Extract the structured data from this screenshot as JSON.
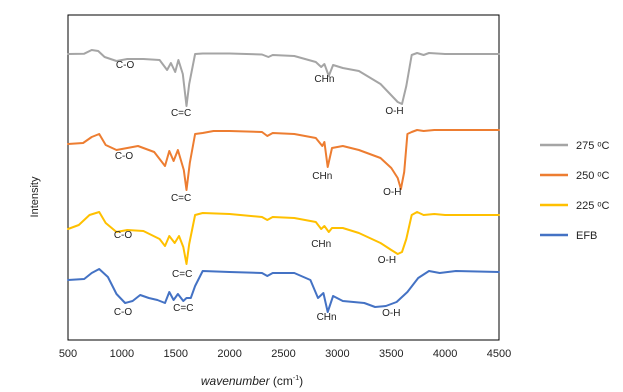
{
  "chart_data": {
    "type": "line",
    "xlabel_main": "wavenumber",
    "xlabel_unit_pre": "(cm",
    "xlabel_unit_exp": "-1",
    "xlabel_unit_post": ")",
    "ylabel": "Intensity",
    "xlim": [
      500,
      4500
    ],
    "xticks": [
      "500",
      "1000",
      "1500",
      "2000",
      "2500",
      "3000",
      "3500",
      "4000",
      "4500"
    ],
    "grid": false,
    "legend_position": "right",
    "series": [
      {
        "name": "275 ᵒC",
        "color": "#a5a5a5",
        "points": [
          [
            500,
            0.0
          ],
          [
            650,
            0.3
          ],
          [
            720,
            4
          ],
          [
            780,
            3
          ],
          [
            840,
            -3
          ],
          [
            950,
            -7
          ],
          [
            1050,
            -5
          ],
          [
            1200,
            -5
          ],
          [
            1350,
            -6
          ],
          [
            1420,
            -16
          ],
          [
            1455,
            -9
          ],
          [
            1495,
            -18
          ],
          [
            1525,
            -6
          ],
          [
            1565,
            -20
          ],
          [
            1600,
            -52
          ],
          [
            1625,
            -30
          ],
          [
            1680,
            0
          ],
          [
            1750,
            0.5
          ],
          [
            2000,
            0.5
          ],
          [
            2300,
            -0.5
          ],
          [
            2360,
            -3
          ],
          [
            2400,
            -1
          ],
          [
            2600,
            -2
          ],
          [
            2800,
            -8
          ],
          [
            2850,
            -13
          ],
          [
            2880,
            -10
          ],
          [
            2920,
            -22
          ],
          [
            2960,
            -11
          ],
          [
            3050,
            -14
          ],
          [
            3200,
            -17
          ],
          [
            3400,
            -30
          ],
          [
            3560,
            -48
          ],
          [
            3600,
            -50
          ],
          [
            3640,
            -32
          ],
          [
            3690,
            -1
          ],
          [
            3740,
            1
          ],
          [
            3800,
            -1
          ],
          [
            3850,
            1
          ],
          [
            4000,
            0
          ],
          [
            4300,
            0
          ],
          [
            4500,
            0
          ]
        ],
        "labels": [
          {
            "text": "C-O",
            "x": 1030,
            "y": -14
          },
          {
            "text": "C=C",
            "x": 1550,
            "y": -62
          },
          {
            "text": "CHn",
            "x": 2880,
            "y": -28
          },
          {
            "text": "O-H",
            "x": 3530,
            "y": -60
          }
        ]
      },
      {
        "name": "250 ᵒC",
        "color": "#ed7d31",
        "points": [
          [
            500,
            -14
          ],
          [
            640,
            -13
          ],
          [
            720,
            -7
          ],
          [
            790,
            -4
          ],
          [
            850,
            -15
          ],
          [
            950,
            -20
          ],
          [
            1050,
            -18
          ],
          [
            1150,
            -16
          ],
          [
            1300,
            -22
          ],
          [
            1400,
            -36
          ],
          [
            1440,
            -21
          ],
          [
            1480,
            -31
          ],
          [
            1520,
            -20
          ],
          [
            1575,
            -40
          ],
          [
            1600,
            -60
          ],
          [
            1630,
            -33
          ],
          [
            1680,
            -4
          ],
          [
            1750,
            -3
          ],
          [
            1850,
            -1
          ],
          [
            2000,
            -1
          ],
          [
            2300,
            -2
          ],
          [
            2350,
            -6
          ],
          [
            2400,
            -3
          ],
          [
            2600,
            -4
          ],
          [
            2800,
            -8
          ],
          [
            2860,
            -16
          ],
          [
            2880,
            -12
          ],
          [
            2910,
            -37
          ],
          [
            2950,
            -18
          ],
          [
            3050,
            -16
          ],
          [
            3200,
            -20
          ],
          [
            3400,
            -28
          ],
          [
            3500,
            -38
          ],
          [
            3560,
            -48
          ],
          [
            3590,
            -59
          ],
          [
            3620,
            -42
          ],
          [
            3650,
            -4
          ],
          [
            3690,
            -2
          ],
          [
            3740,
            0
          ],
          [
            3800,
            -1
          ],
          [
            3900,
            0
          ],
          [
            4000,
            0
          ],
          [
            4500,
            0
          ]
        ],
        "labels": [
          {
            "text": "C-O",
            "x": 1020,
            "y": -29
          },
          {
            "text": "C=C",
            "x": 1550,
            "y": -71
          },
          {
            "text": "CHn",
            "x": 2860,
            "y": -49
          },
          {
            "text": "O-H",
            "x": 3510,
            "y": -65
          }
        ]
      },
      {
        "name": "225 ᵒC",
        "color": "#ffc000",
        "points": [
          [
            500,
            -15
          ],
          [
            600,
            -11
          ],
          [
            700,
            -1
          ],
          [
            790,
            2
          ],
          [
            850,
            -9
          ],
          [
            950,
            -18
          ],
          [
            1050,
            -16
          ],
          [
            1200,
            -17
          ],
          [
            1350,
            -25
          ],
          [
            1400,
            -32
          ],
          [
            1440,
            -22
          ],
          [
            1490,
            -29
          ],
          [
            1530,
            -22
          ],
          [
            1570,
            -33
          ],
          [
            1600,
            -50
          ],
          [
            1625,
            -30
          ],
          [
            1680,
            -1
          ],
          [
            1750,
            1
          ],
          [
            2000,
            0
          ],
          [
            2300,
            -3
          ],
          [
            2350,
            -6
          ],
          [
            2400,
            -3
          ],
          [
            2600,
            -4
          ],
          [
            2800,
            -8
          ],
          [
            2850,
            -15
          ],
          [
            2880,
            -12
          ],
          [
            2920,
            -18
          ],
          [
            2950,
            -14
          ],
          [
            3050,
            -14
          ],
          [
            3200,
            -19
          ],
          [
            3400,
            -29
          ],
          [
            3500,
            -36
          ],
          [
            3560,
            -40
          ],
          [
            3600,
            -38
          ],
          [
            3640,
            -25
          ],
          [
            3690,
            -1
          ],
          [
            3740,
            2
          ],
          [
            3800,
            -1
          ],
          [
            3900,
            0
          ],
          [
            4000,
            -1
          ],
          [
            4500,
            -1
          ]
        ],
        "labels": [
          {
            "text": "C-O",
            "x": 1010,
            "y": -24
          },
          {
            "text": "C=C",
            "x": 1560,
            "y": -63
          },
          {
            "text": "CHn",
            "x": 2850,
            "y": -33
          },
          {
            "text": "O-H",
            "x": 3460,
            "y": -49
          }
        ]
      },
      {
        "name": "EFB",
        "color": "#4472c4",
        "points": [
          [
            500,
            -8
          ],
          [
            650,
            -7
          ],
          [
            720,
            -1
          ],
          [
            790,
            3
          ],
          [
            870,
            -5
          ],
          [
            950,
            -22
          ],
          [
            1030,
            -31
          ],
          [
            1100,
            -29
          ],
          [
            1170,
            -23
          ],
          [
            1250,
            -26
          ],
          [
            1330,
            -28
          ],
          [
            1400,
            -31
          ],
          [
            1440,
            -20
          ],
          [
            1480,
            -28
          ],
          [
            1520,
            -22
          ],
          [
            1570,
            -29
          ],
          [
            1600,
            -26
          ],
          [
            1640,
            -26
          ],
          [
            1680,
            -14
          ],
          [
            1750,
            1
          ],
          [
            2000,
            0
          ],
          [
            2300,
            -1
          ],
          [
            2350,
            -4
          ],
          [
            2400,
            -1
          ],
          [
            2600,
            -1
          ],
          [
            2750,
            -8
          ],
          [
            2820,
            -26
          ],
          [
            2870,
            -21
          ],
          [
            2910,
            -40
          ],
          [
            2960,
            -24
          ],
          [
            3050,
            -29
          ],
          [
            3150,
            -30
          ],
          [
            3250,
            -31
          ],
          [
            3350,
            -35
          ],
          [
            3450,
            -34
          ],
          [
            3550,
            -30
          ],
          [
            3650,
            -20
          ],
          [
            3750,
            -6
          ],
          [
            3850,
            1
          ],
          [
            3950,
            -1
          ],
          [
            4100,
            1
          ],
          [
            4500,
            0
          ]
        ],
        "labels": [
          {
            "text": "C-O",
            "x": 1010,
            "y": -43
          },
          {
            "text": "C=C",
            "x": 1570,
            "y": -39
          },
          {
            "text": "CHn",
            "x": 2900,
            "y": -48
          },
          {
            "text": "O-H",
            "x": 3500,
            "y": -44
          }
        ]
      }
    ]
  }
}
